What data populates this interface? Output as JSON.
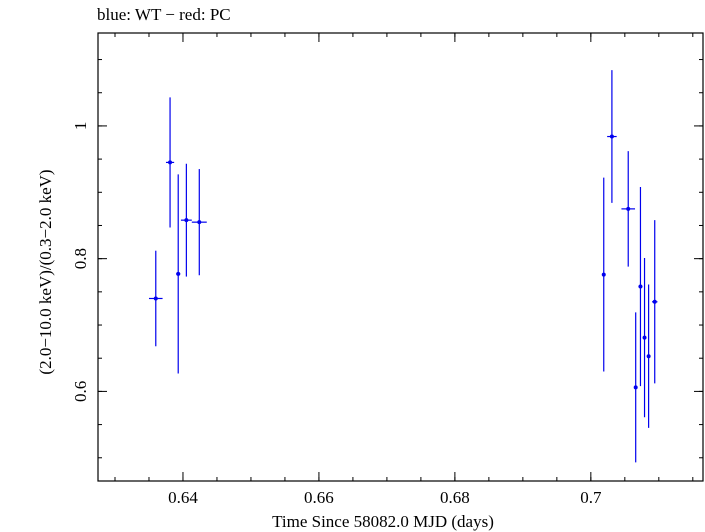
{
  "chart_data": {
    "type": "scatter",
    "title": "blue: WT − red: PC",
    "xlabel": "Time Since 58082.0 MJD (days)",
    "ylabel": "(2.0−10.0 keV)/(0.3−2.0 keV)",
    "xlim": [
      0.6275,
      0.7165
    ],
    "ylim": [
      0.465,
      1.14
    ],
    "x_ticks": [
      {
        "value": 0.64,
        "label": "0.64"
      },
      {
        "value": 0.66,
        "label": "0.66"
      },
      {
        "value": 0.68,
        "label": "0.68"
      },
      {
        "value": 0.7,
        "label": "0.7"
      }
    ],
    "y_ticks": [
      {
        "value": 0.6,
        "label": "0.6"
      },
      {
        "value": 0.8,
        "label": "0.8"
      },
      {
        "value": 1.0,
        "label": "1"
      }
    ],
    "series": [
      {
        "name": "WT",
        "color": "#0000ee",
        "points": [
          {
            "x": 0.636,
            "xerr": 0.001,
            "y": 0.74,
            "yerr": 0.072
          },
          {
            "x": 0.6381,
            "xerr": 0.0006,
            "y": 0.945,
            "yerr": 0.098
          },
          {
            "x": 0.6393,
            "xerr": 0.0003,
            "y": 0.777,
            "yerr": 0.15
          },
          {
            "x": 0.6405,
            "xerr": 0.0008,
            "y": 0.858,
            "yerr": 0.085
          },
          {
            "x": 0.6424,
            "xerr": 0.0011,
            "y": 0.855,
            "yerr": 0.08
          },
          {
            "x": 0.7019,
            "xerr": 0.0002,
            "y": 0.776,
            "yerr": 0.146
          },
          {
            "x": 0.7031,
            "xerr": 0.0007,
            "y": 0.984,
            "yerr": 0.1
          },
          {
            "x": 0.7055,
            "xerr": 0.001,
            "y": 0.875,
            "yerr": 0.087
          },
          {
            "x": 0.7066,
            "xerr": 0.0002,
            "y": 0.606,
            "yerr": 0.113
          },
          {
            "x": 0.7073,
            "xerr": 0.0003,
            "y": 0.758,
            "yerr": 0.15
          },
          {
            "x": 0.7079,
            "xerr": 0.0002,
            "y": 0.681,
            "yerr": 0.12
          },
          {
            "x": 0.7085,
            "xerr": 0.0002,
            "y": 0.653,
            "yerr": 0.108
          },
          {
            "x": 0.7094,
            "xerr": 0.0004,
            "y": 0.735,
            "yerr": 0.123
          }
        ]
      }
    ]
  }
}
